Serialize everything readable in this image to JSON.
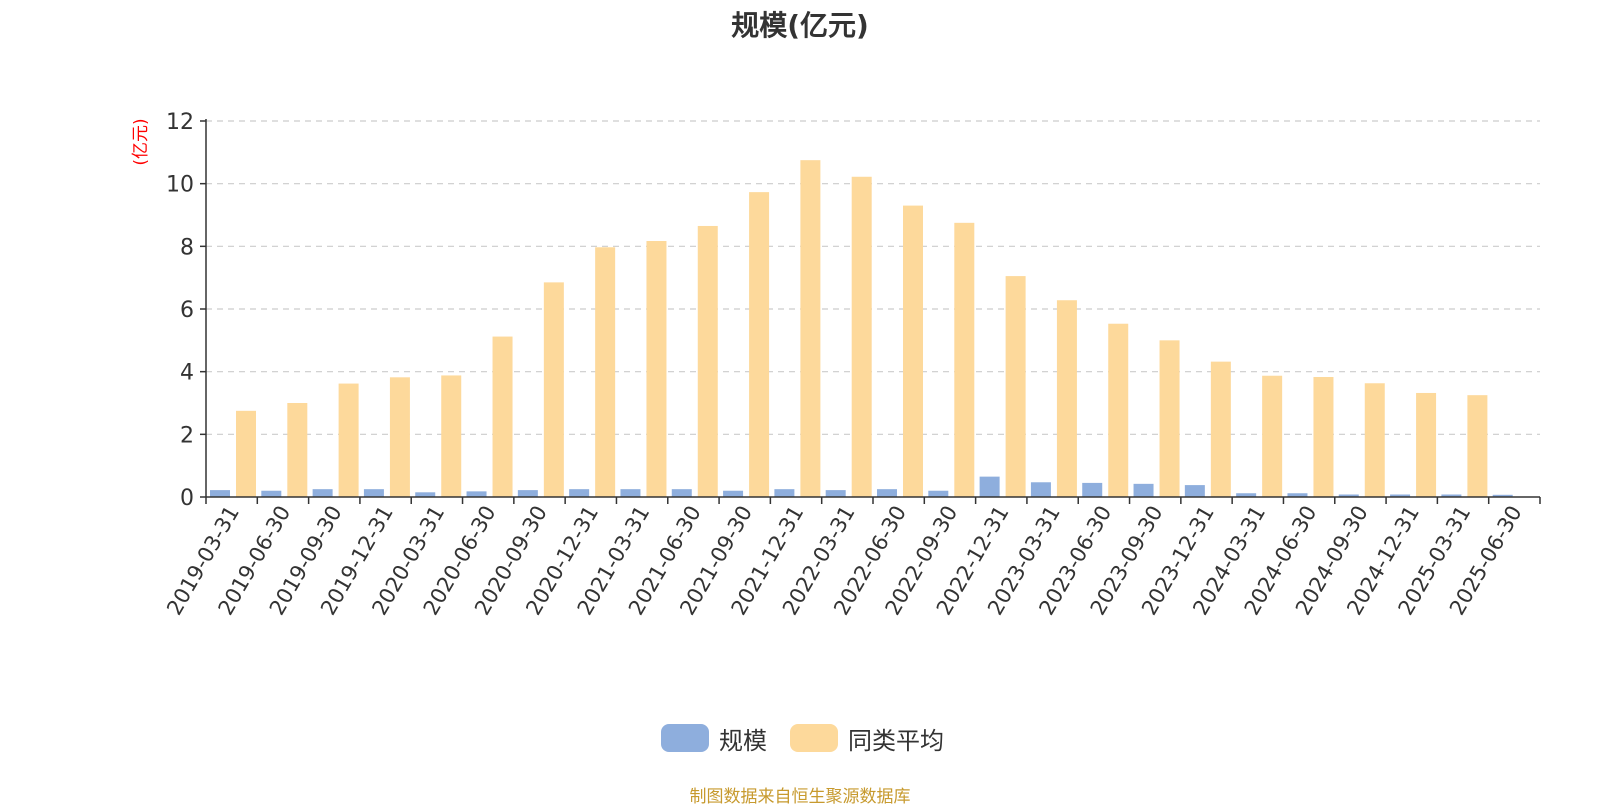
{
  "chart_data": {
    "type": "bar",
    "title": "规模(亿元)",
    "ylabel": "(亿元)",
    "xlabel": "",
    "ylim": [
      0,
      12
    ],
    "yticks": [
      "0",
      "2",
      "4",
      "6",
      "8",
      "10",
      "12"
    ],
    "grid": true,
    "legend_position": "bottom",
    "categories": [
      "2019-03-31",
      "2019-06-30",
      "2019-09-30",
      "2019-12-31",
      "2020-03-31",
      "2020-06-30",
      "2020-09-30",
      "2020-12-31",
      "2021-03-31",
      "2021-06-30",
      "2021-09-30",
      "2021-12-31",
      "2022-03-31",
      "2022-06-30",
      "2022-09-30",
      "2022-12-31",
      "2023-03-31",
      "2023-06-30",
      "2023-09-30",
      "2023-12-31",
      "2024-03-31",
      "2024-06-30",
      "2024-09-30",
      "2024-12-31",
      "2025-03-31",
      "2025-06-30"
    ],
    "series": [
      {
        "name": "规模",
        "color": "#8eaedd",
        "values": [
          0.22,
          0.2,
          0.25,
          0.25,
          0.15,
          0.18,
          0.22,
          0.25,
          0.25,
          0.25,
          0.2,
          0.25,
          0.22,
          0.25,
          0.2,
          0.65,
          0.47,
          0.45,
          0.42,
          0.38,
          0.12,
          0.12,
          0.08,
          0.08,
          0.08,
          0.07
        ]
      },
      {
        "name": "同类平均",
        "color": "#fdd99b",
        "values": [
          2.75,
          3.0,
          3.62,
          3.82,
          3.88,
          5.12,
          6.85,
          7.97,
          8.17,
          8.65,
          9.73,
          10.75,
          10.22,
          9.3,
          8.75,
          7.05,
          6.28,
          5.53,
          5.0,
          4.32,
          3.87,
          3.83,
          3.63,
          3.32,
          3.25,
          null
        ]
      }
    ]
  },
  "source_note": "制图数据来自恒生聚源数据库"
}
